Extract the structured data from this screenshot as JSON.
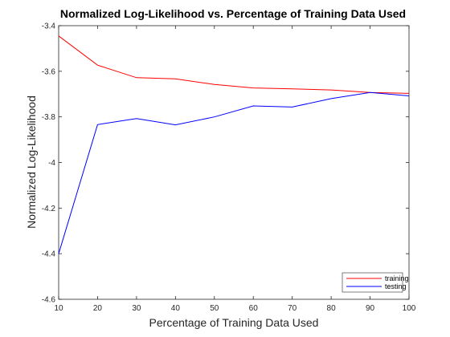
{
  "chart_data": {
    "type": "line",
    "title": "Normalized Log-Likelihood vs. Percentage of Training Data Used",
    "xlabel": "Percentage of Training Data Used",
    "ylabel": "Normalized Log-Likelihood",
    "xlim": [
      10,
      100
    ],
    "ylim": [
      -4.6,
      -3.4
    ],
    "xticks": [
      10,
      20,
      30,
      40,
      50,
      60,
      70,
      80,
      90,
      100
    ],
    "yticks": [
      -4.6,
      -4.4,
      -4.2,
      -4,
      -3.8,
      -3.6,
      -3.4
    ],
    "grid": false,
    "legend_position": "bottom-right",
    "x": [
      10,
      20,
      30,
      40,
      50,
      60,
      70,
      80,
      90,
      100
    ],
    "series": [
      {
        "name": "training",
        "color": "#ff0000",
        "values": [
          -3.445,
          -3.573,
          -3.628,
          -3.633,
          -3.658,
          -3.673,
          -3.677,
          -3.682,
          -3.693,
          -3.697
        ]
      },
      {
        "name": "testing",
        "color": "#0000ff",
        "values": [
          -4.4,
          -3.834,
          -3.807,
          -3.835,
          -3.8,
          -3.752,
          -3.757,
          -3.72,
          -3.693,
          -3.708
        ]
      }
    ]
  }
}
